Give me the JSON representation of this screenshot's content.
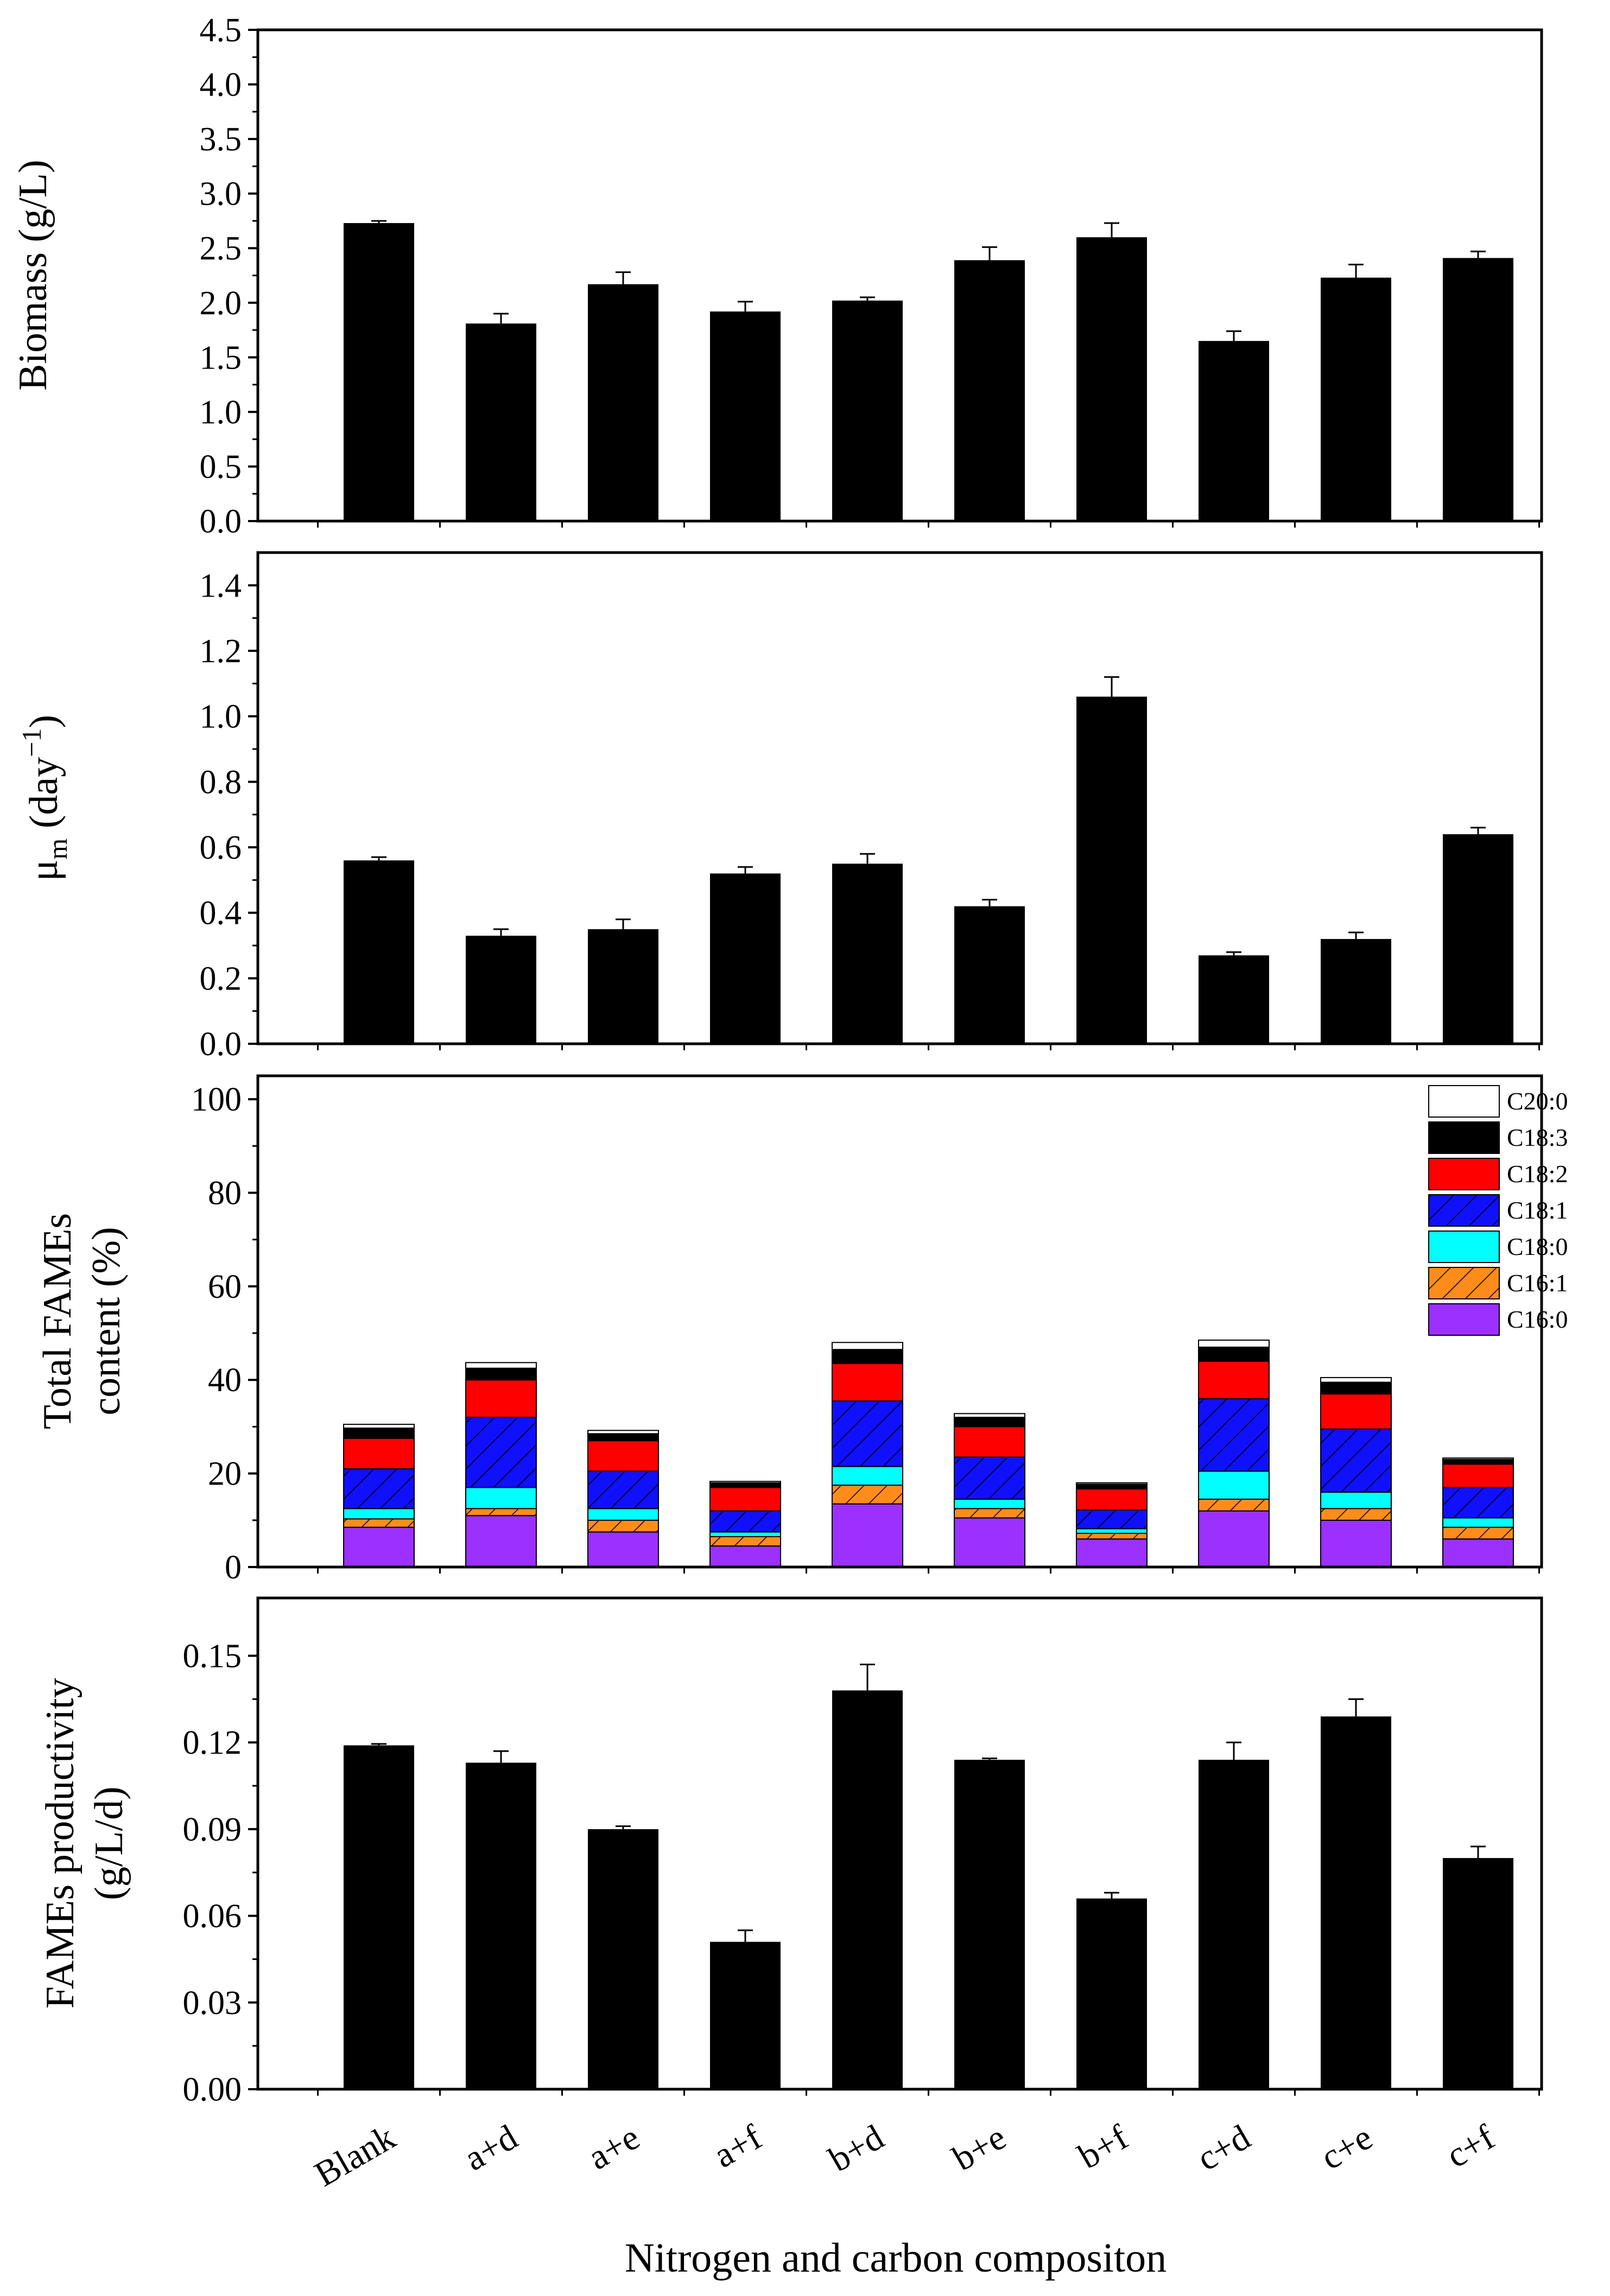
{
  "categories": [
    "Blank",
    "a+d",
    "a+e",
    "a+f",
    "b+d",
    "b+e",
    "b+f",
    "c+d",
    "c+e",
    "c+f"
  ],
  "xlabel": "Nitrogen and carbon compositon",
  "chart_data": [
    {
      "type": "bar",
      "ylabel": "Biomass (g/L)",
      "ylim": [
        0,
        4.5
      ],
      "yticks": [
        "0.0",
        "0.5",
        "1.0",
        "1.5",
        "2.0",
        "2.5",
        "3.0",
        "3.5",
        "4.0",
        "4.5"
      ],
      "values": [
        2.73,
        1.81,
        2.17,
        1.92,
        2.02,
        2.39,
        2.6,
        1.65,
        2.23,
        2.41
      ],
      "errors": [
        0.02,
        0.09,
        0.11,
        0.09,
        0.03,
        0.12,
        0.13,
        0.09,
        0.12,
        0.06
      ],
      "color": "#000000"
    },
    {
      "type": "bar",
      "ylabel_main": "μ",
      "ylabel_sub": "m",
      "ylabel_rest": " (day",
      "ylabel_sup": "−1",
      "ylabel_close": ")",
      "ylim": [
        0,
        1.5
      ],
      "yticks": [
        "0.0",
        "0.2",
        "0.4",
        "0.6",
        "0.8",
        "1.0",
        "1.2",
        "1.4"
      ],
      "values": [
        0.56,
        0.33,
        0.35,
        0.52,
        0.55,
        0.42,
        1.06,
        0.27,
        0.32,
        0.64
      ],
      "errors": [
        0.01,
        0.02,
        0.03,
        0.02,
        0.03,
        0.02,
        0.06,
        0.01,
        0.02,
        0.02
      ],
      "color": "#000000"
    },
    {
      "type": "stacked_bar",
      "ylabel_line1": "Total FAMEs",
      "ylabel_line2": "content (%)",
      "ylim": [
        0,
        105
      ],
      "yticks": [
        "0",
        "20",
        "40",
        "60",
        "80",
        "100"
      ],
      "series": [
        {
          "name": "C16:0",
          "color": "#9b30ff",
          "hatch": false,
          "values": [
            8.5,
            11,
            7.5,
            4.5,
            13.5,
            10.5,
            6,
            12,
            10,
            6
          ]
        },
        {
          "name": "C16:1",
          "color": "#ff8c1a",
          "hatch": true,
          "values": [
            1.8,
            1.5,
            2.5,
            2,
            4,
            2,
            1.2,
            2.5,
            2.5,
            2.5
          ]
        },
        {
          "name": "C18:0",
          "color": "#00ffff",
          "hatch": false,
          "values": [
            2.2,
            4.5,
            2.5,
            1,
            4,
            2,
            1,
            6,
            3.5,
            2
          ]
        },
        {
          "name": "C18:1",
          "color": "#1010ff",
          "hatch": true,
          "values": [
            8.5,
            15,
            8,
            4.5,
            14,
            9,
            4,
            15.5,
            13.5,
            6.5
          ]
        },
        {
          "name": "C18:2",
          "color": "#ff0000",
          "hatch": false,
          "values": [
            6.5,
            8,
            6.5,
            5,
            8,
            6.5,
            4.5,
            8,
            7.5,
            5
          ]
        },
        {
          "name": "C18:3",
          "color": "#000000",
          "hatch": false,
          "values": [
            2.2,
            2.5,
            1.5,
            1,
            3,
            2,
            1,
            3,
            2.5,
            1
          ]
        },
        {
          "name": "C20:0",
          "color": "#ffffff",
          "hatch": false,
          "values": [
            0.8,
            1.2,
            0.7,
            0.3,
            1.5,
            0.8,
            0.3,
            1.5,
            1,
            0.3
          ]
        }
      ]
    },
    {
      "type": "bar",
      "ylabel_line1": "FAMEs productivity",
      "ylabel_line2": "(g/L/d)",
      "ylim": [
        0,
        0.17
      ],
      "yticks": [
        "0.00",
        "0.03",
        "0.06",
        "0.09",
        "0.12",
        "0.15"
      ],
      "values": [
        0.119,
        0.113,
        0.09,
        0.051,
        0.138,
        0.114,
        0.066,
        0.114,
        0.129,
        0.08
      ],
      "errors": [
        0.0005,
        0.004,
        0.001,
        0.004,
        0.009,
        0.0005,
        0.002,
        0.006,
        0.006,
        0.004
      ],
      "color": "#000000"
    }
  ]
}
